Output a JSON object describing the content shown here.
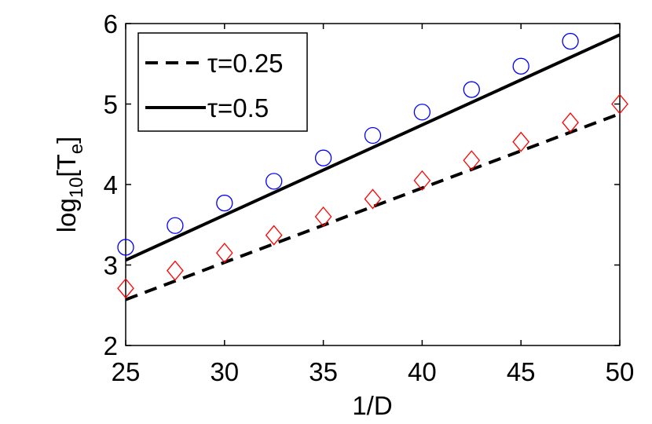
{
  "chart_data": {
    "type": "line",
    "xlabel": "1/D",
    "ylabel": {
      "prefix": "log",
      "sub1": "10",
      "mid": "[T",
      "sub2": "e",
      "suffix": "]"
    },
    "xlim": [
      25,
      50
    ],
    "ylim": [
      2,
      6
    ],
    "xticks": [
      25,
      30,
      35,
      40,
      45,
      50
    ],
    "yticks": [
      2,
      3,
      4,
      5,
      6
    ],
    "grid": false,
    "legend_position": "top-left",
    "series": [
      {
        "name": "τ=0.25",
        "style": "dashed-line",
        "color": "#000000",
        "x": [
          25,
          50
        ],
        "y": [
          2.57,
          4.88
        ]
      },
      {
        "name": "τ=0.5",
        "style": "solid-line",
        "color": "#000000",
        "x": [
          25,
          50
        ],
        "y": [
          3.06,
          5.86
        ]
      },
      {
        "style": "circle-markers",
        "color": "#0000ff",
        "x": [
          25,
          27.5,
          30,
          32.5,
          35,
          37.5,
          40,
          42.5,
          45,
          47.5
        ],
        "y": [
          3.22,
          3.49,
          3.77,
          4.04,
          4.33,
          4.61,
          4.9,
          5.18,
          5.47,
          5.78
        ]
      },
      {
        "style": "diamond-markers",
        "color": "#ff0000",
        "x": [
          25,
          27.5,
          30,
          32.5,
          35,
          37.5,
          40,
          42.5,
          45,
          47.5,
          50
        ],
        "y": [
          2.71,
          2.93,
          3.15,
          3.37,
          3.6,
          3.82,
          4.05,
          4.3,
          4.53,
          4.77,
          5.0
        ]
      }
    ]
  }
}
